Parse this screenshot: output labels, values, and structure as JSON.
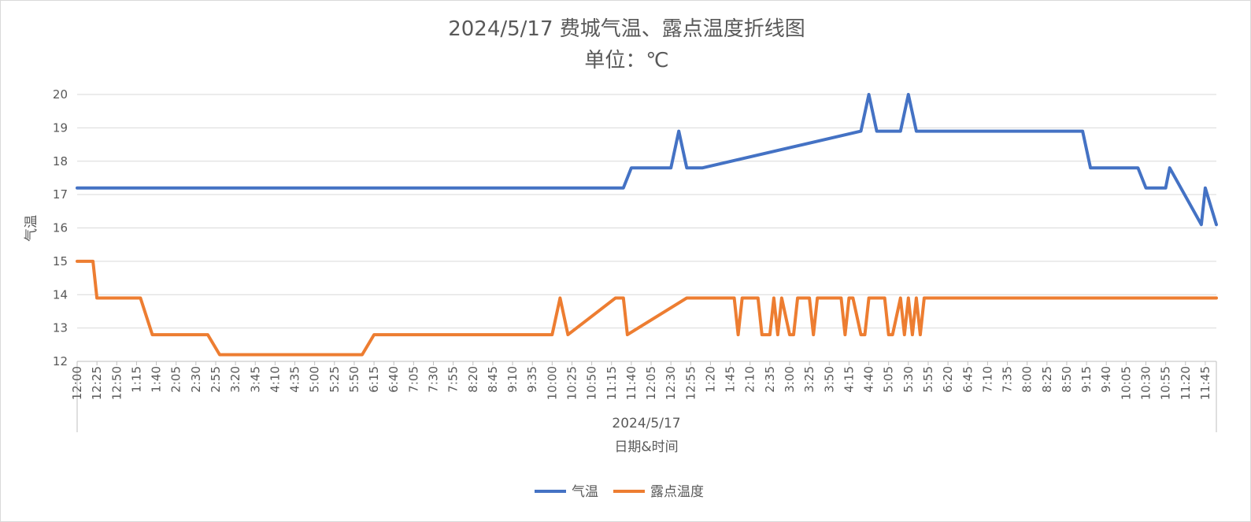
{
  "chart_data": {
    "type": "line",
    "title": "2024/5/17 费城气温、露点温度折线图",
    "subtitle": "单位：℃",
    "xlabel": "日期&时间",
    "x_group_label": "2024/5/17",
    "ylabel": "气温",
    "ylim": [
      12,
      20
    ],
    "yticks": [
      12,
      13,
      14,
      15,
      16,
      17,
      18,
      19,
      20
    ],
    "grid": true,
    "legend_position": "bottom",
    "x_tick_labels": [
      "12:00",
      "12:25",
      "12:50",
      "1:15",
      "1:40",
      "2:05",
      "2:30",
      "2:55",
      "3:20",
      "3:45",
      "4:10",
      "4:35",
      "5:00",
      "5:25",
      "5:50",
      "6:15",
      "6:40",
      "7:05",
      "7:30",
      "7:55",
      "8:20",
      "8:45",
      "9:10",
      "9:35",
      "10:00",
      "10:25",
      "10:50",
      "11:15",
      "11:40",
      "12:05",
      "12:30",
      "12:55",
      "1:20",
      "1:45",
      "2:10",
      "2:35",
      "3:00",
      "3:25",
      "3:50",
      "4:15",
      "4:40",
      "5:05",
      "5:30",
      "5:55",
      "6:20",
      "6:45",
      "7:10",
      "7:35",
      "8:00",
      "8:25",
      "8:50",
      "9:15",
      "9:40",
      "10:05",
      "10:30",
      "10:55",
      "11:20",
      "11:45"
    ],
    "x_minutes": [
      0,
      1439
    ],
    "series": [
      {
        "name": "气温",
        "color": "#4472c4",
        "x_minutes": [
          0,
          20,
          40,
          80,
          120,
          180,
          240,
          300,
          360,
          420,
          480,
          540,
          600,
          660,
          690,
          700,
          720,
          750,
          760,
          770,
          790,
          990,
          1000,
          1010,
          1040,
          1050,
          1060,
          1270,
          1280,
          1320,
          1340,
          1350,
          1360,
          1375,
          1380,
          1420,
          1425,
          1439
        ],
        "values": [
          17.2,
          17.2,
          17.2,
          17.2,
          17.2,
          17.2,
          17.2,
          17.2,
          17.2,
          17.2,
          17.2,
          17.2,
          17.2,
          17.2,
          17.2,
          17.8,
          17.8,
          17.8,
          18.9,
          17.8,
          17.8,
          18.9,
          20.0,
          18.9,
          18.9,
          20.0,
          18.9,
          18.9,
          17.8,
          17.8,
          17.8,
          17.2,
          17.2,
          17.2,
          17.8,
          16.1,
          17.2,
          16.1
        ]
      },
      {
        "name": "露点温度",
        "color": "#ed7d31",
        "x_minutes": [
          0,
          20,
          25,
          80,
          95,
          165,
          180,
          240,
          300,
          360,
          375,
          460,
          520,
          580,
          600,
          610,
          620,
          680,
          690,
          695,
          770,
          790,
          830,
          835,
          840,
          860,
          865,
          875,
          880,
          885,
          890,
          900,
          905,
          910,
          925,
          930,
          935,
          965,
          970,
          975,
          980,
          990,
          995,
          1000,
          1020,
          1025,
          1030,
          1040,
          1045,
          1050,
          1055,
          1060,
          1065,
          1070,
          1439
        ],
        "values": [
          15.0,
          15.0,
          13.9,
          13.9,
          12.8,
          12.8,
          12.2,
          12.2,
          12.2,
          12.2,
          12.8,
          12.8,
          12.8,
          12.8,
          12.8,
          13.9,
          12.8,
          13.9,
          13.9,
          12.8,
          13.9,
          13.9,
          13.9,
          12.8,
          13.9,
          13.9,
          12.8,
          12.8,
          13.9,
          12.8,
          13.9,
          12.8,
          12.8,
          13.9,
          13.9,
          12.8,
          13.9,
          13.9,
          12.8,
          13.9,
          13.9,
          12.8,
          12.8,
          13.9,
          13.9,
          12.8,
          12.8,
          13.9,
          12.8,
          13.9,
          12.8,
          13.9,
          12.8,
          13.9,
          13.9
        ]
      }
    ]
  }
}
